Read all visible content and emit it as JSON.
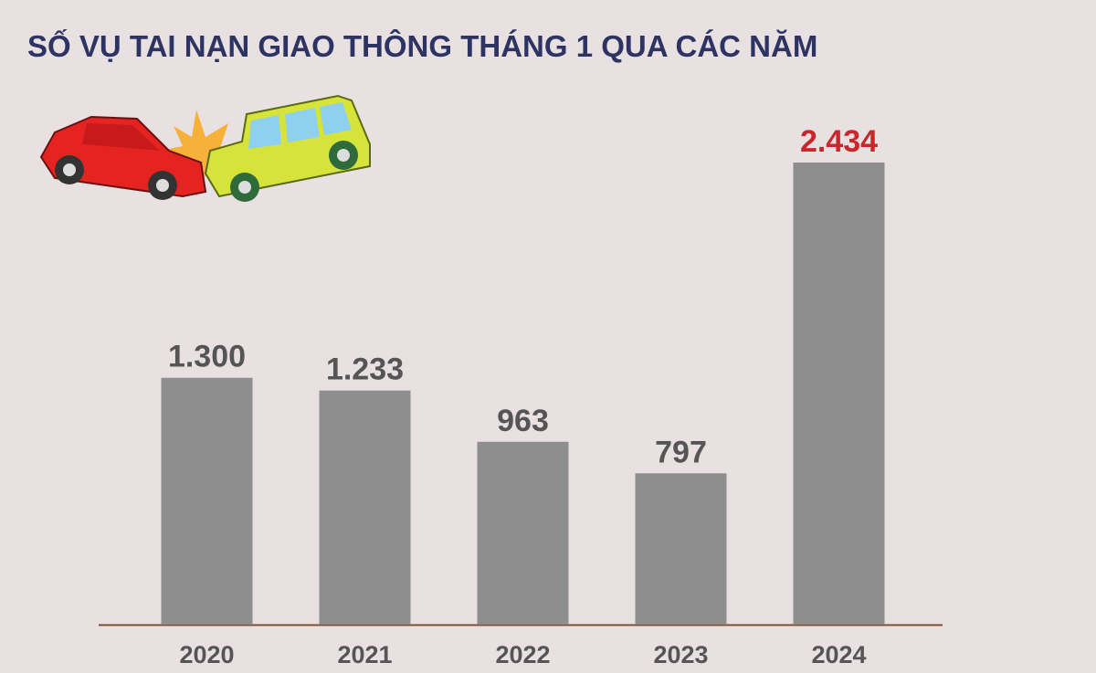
{
  "chart_data": {
    "type": "bar",
    "title": "SỐ VỤ TAI NẠN GIAO THÔNG THÁNG 1 QUA CÁC NĂM",
    "categories": [
      "2020",
      "2021",
      "2022",
      "2023",
      "2024"
    ],
    "values": [
      1300,
      1233,
      963,
      797,
      2434
    ],
    "value_labels": [
      "1.300",
      "1.233",
      "963",
      "797",
      "2.434"
    ],
    "color": "#8e8e8e",
    "value_label_colors": [
      "#555555",
      "#555555",
      "#555555",
      "#555555",
      "#c8282c"
    ]
  }
}
